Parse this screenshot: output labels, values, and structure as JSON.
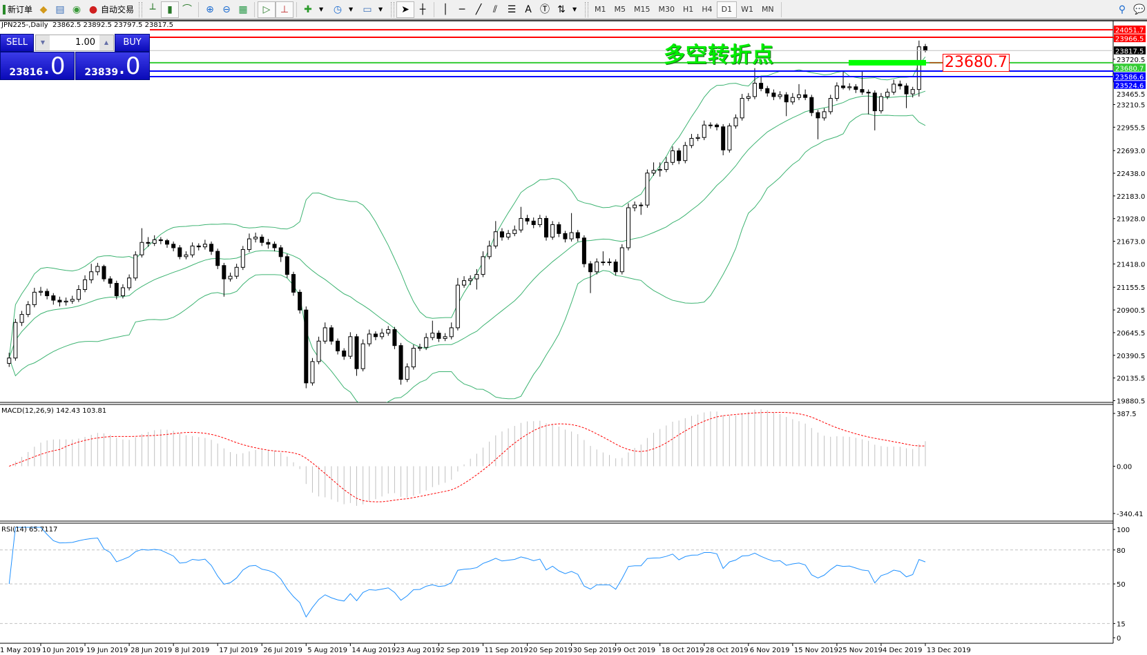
{
  "toolbar": {
    "new_order": "新订单",
    "auto_trading": "自动交易",
    "timeframes": [
      "M1",
      "M5",
      "M15",
      "M30",
      "H1",
      "H4",
      "D1",
      "W1",
      "MN"
    ],
    "active_timeframe": "D1"
  },
  "chart": {
    "title": "JPN225-,Daily  23862.5 23892.5 23797.5 23817.5",
    "annotation": "多空转折点",
    "price_label": "23680.7",
    "annotation_color": "#00ee00"
  },
  "trade_panel": {
    "sell_label": "SELL",
    "buy_label": "BUY",
    "lots": "1.00",
    "sell_price_main": "23816",
    "sell_price_big": ".0",
    "buy_price_main": "23839",
    "buy_price_big": ".0"
  },
  "macd": {
    "label": "MACD(12,26,9) 142.43 103.81",
    "axis": [
      "387.5",
      "0.00",
      "-340.41"
    ]
  },
  "rsi": {
    "label": "RSI(14) 65.7117",
    "axis": [
      "100",
      "80",
      "50",
      "15",
      "0"
    ]
  },
  "chart_data": {
    "type": "candlestick",
    "symbol": "JPN225-",
    "timeframe": "Daily",
    "y_ticks": [
      "23465.5",
      "23210.5",
      "22955.5",
      "22693.0",
      "22438.0",
      "22183.0",
      "21928.0",
      "21673.0",
      "21418.0",
      "21155.5",
      "20900.5",
      "20645.5",
      "20390.5",
      "20135.5",
      "19880.5",
      "23720.5"
    ],
    "ylim": [
      19880.5,
      24090
    ],
    "hlines": [
      {
        "value": 24051.7,
        "label": "24051.7",
        "color": "#ff0000"
      },
      {
        "value": 23966.5,
        "label": "23966.5",
        "color": "#ff0000"
      },
      {
        "value": 23817.5,
        "label": "23817.5",
        "color": "#000000"
      },
      {
        "value": 23680.7,
        "label": "23680.7",
        "color": "#33cc33"
      },
      {
        "value": 23586.6,
        "label": "23586.6",
        "color": "#0000ff"
      },
      {
        "value": 23524.6,
        "label": "23524.6",
        "color": "#0000ff"
      }
    ],
    "x_labels": [
      "1 May 2019",
      "10 Jun 2019",
      "19 Jun 2019",
      "28 Jun 2019",
      "8 Jul 2019",
      "17 Jul 2019",
      "26 Jul 2019",
      "5 Aug 2019",
      "14 Aug 2019",
      "23 Aug 2019",
      "2 Sep 2019",
      "11 Sep 2019",
      "20 Sep 2019",
      "30 Sep 2019",
      "9 Oct 2019",
      "18 Oct 2019",
      "28 Oct 2019",
      "6 Nov 2019",
      "15 Nov 2019",
      "25 Nov 2019",
      "4 Dec 2019",
      "13 Dec 2019"
    ],
    "indicators": {
      "bollinger": {
        "period": 20,
        "deviation": 2,
        "color": "#3cb371"
      },
      "macd_hist_color": "#c0c0c0",
      "macd_signal_color": "#ff0000",
      "rsi_color": "#1e90ff"
    },
    "ohlc": [
      [
        20300,
        20420,
        20260,
        20360
      ],
      [
        20360,
        20800,
        20330,
        20760
      ],
      [
        20760,
        20890,
        20720,
        20850
      ],
      [
        20850,
        21000,
        20820,
        20960
      ],
      [
        20960,
        21150,
        20930,
        21100
      ],
      [
        21100,
        21160,
        21060,
        21110
      ],
      [
        21110,
        21140,
        21020,
        21060
      ],
      [
        21060,
        21090,
        20960,
        21010
      ],
      [
        21010,
        21050,
        20940,
        20990
      ],
      [
        20990,
        21040,
        20950,
        21000
      ],
      [
        21000,
        21060,
        20970,
        21020
      ],
      [
        21020,
        21180,
        20990,
        21130
      ],
      [
        21130,
        21290,
        21100,
        21240
      ],
      [
        21240,
        21420,
        21200,
        21330
      ],
      [
        21330,
        21430,
        21290,
        21390
      ],
      [
        21390,
        21410,
        21220,
        21250
      ],
      [
        21250,
        21280,
        21150,
        21200
      ],
      [
        21200,
        21230,
        21020,
        21060
      ],
      [
        21060,
        21190,
        21030,
        21150
      ],
      [
        21150,
        21300,
        21120,
        21260
      ],
      [
        21260,
        21560,
        21230,
        21520
      ],
      [
        21520,
        21820,
        21490,
        21660
      ],
      [
        21660,
        21720,
        21610,
        21650
      ],
      [
        21650,
        21740,
        21620,
        21690
      ],
      [
        21690,
        21720,
        21640,
        21680
      ],
      [
        21680,
        21700,
        21600,
        21640
      ],
      [
        21640,
        21670,
        21560,
        21600
      ],
      [
        21600,
        21630,
        21470,
        21500
      ],
      [
        21500,
        21560,
        21470,
        21520
      ],
      [
        21520,
        21660,
        21490,
        21620
      ],
      [
        21620,
        21650,
        21570,
        21610
      ],
      [
        21610,
        21690,
        21580,
        21640
      ],
      [
        21640,
        21670,
        21520,
        21560
      ],
      [
        21560,
        21590,
        21360,
        21400
      ],
      [
        21400,
        21430,
        21050,
        21250
      ],
      [
        21250,
        21320,
        21220,
        21280
      ],
      [
        21280,
        21420,
        21250,
        21380
      ],
      [
        21380,
        21620,
        21350,
        21580
      ],
      [
        21580,
        21760,
        21550,
        21700
      ],
      [
        21700,
        21770,
        21660,
        21720
      ],
      [
        21720,
        21750,
        21620,
        21660
      ],
      [
        21660,
        21700,
        21590,
        21640
      ],
      [
        21640,
        21670,
        21560,
        21600
      ],
      [
        21600,
        21630,
        21440,
        21500
      ],
      [
        21500,
        21530,
        21260,
        21300
      ],
      [
        21300,
        21330,
        21060,
        21100
      ],
      [
        21100,
        21130,
        20860,
        20900
      ],
      [
        20900,
        20940,
        20020,
        20080
      ],
      [
        20080,
        20360,
        20050,
        20320
      ],
      [
        20320,
        20600,
        20290,
        20550
      ],
      [
        20550,
        20760,
        20520,
        20700
      ],
      [
        20700,
        20730,
        20510,
        20550
      ],
      [
        20550,
        20580,
        20400,
        20440
      ],
      [
        20440,
        20470,
        20340,
        20380
      ],
      [
        20380,
        20650,
        20350,
        20600
      ],
      [
        20600,
        20630,
        20160,
        20240
      ],
      [
        20240,
        20570,
        20210,
        20520
      ],
      [
        20520,
        20680,
        20490,
        20630
      ],
      [
        20630,
        20660,
        20560,
        20600
      ],
      [
        20600,
        20690,
        20570,
        20640
      ],
      [
        20640,
        20720,
        20610,
        20680
      ],
      [
        20680,
        20710,
        20460,
        20500
      ],
      [
        20500,
        20530,
        20060,
        20120
      ],
      [
        20120,
        20300,
        20090,
        20260
      ],
      [
        20260,
        20510,
        20230,
        20470
      ],
      [
        20470,
        20520,
        20440,
        20480
      ],
      [
        20480,
        20640,
        20450,
        20590
      ],
      [
        20590,
        20780,
        20560,
        20640
      ],
      [
        20640,
        20670,
        20540,
        20580
      ],
      [
        20580,
        20640,
        20550,
        20600
      ],
      [
        20600,
        20760,
        20570,
        20700
      ],
      [
        20700,
        21260,
        20670,
        21180
      ],
      [
        21180,
        21280,
        21150,
        21230
      ],
      [
        21230,
        21290,
        21180,
        21250
      ],
      [
        21250,
        21360,
        21130,
        21300
      ],
      [
        21300,
        21560,
        21270,
        21500
      ],
      [
        21500,
        21680,
        21470,
        21620
      ],
      [
        21620,
        21900,
        21590,
        21780
      ],
      [
        21780,
        21820,
        21680,
        21720
      ],
      [
        21720,
        21800,
        21690,
        21760
      ],
      [
        21760,
        21850,
        21730,
        21800
      ],
      [
        21800,
        22060,
        21770,
        21930
      ],
      [
        21930,
        21970,
        21860,
        21900
      ],
      [
        21900,
        21940,
        21820,
        21860
      ],
      [
        21860,
        21970,
        21830,
        21930
      ],
      [
        21930,
        21960,
        21680,
        21720
      ],
      [
        21720,
        21900,
        21690,
        21860
      ],
      [
        21860,
        21890,
        21720,
        21760
      ],
      [
        21760,
        21790,
        21660,
        21700
      ],
      [
        21700,
        21990,
        21670,
        21770
      ],
      [
        21770,
        21800,
        21670,
        21710
      ],
      [
        21710,
        21740,
        21380,
        21420
      ],
      [
        21420,
        21450,
        21090,
        21330
      ],
      [
        21330,
        21480,
        21300,
        21440
      ],
      [
        21440,
        21560,
        21400,
        21440
      ],
      [
        21440,
        21480,
        21400,
        21440
      ],
      [
        21440,
        21470,
        21290,
        21330
      ],
      [
        21330,
        21640,
        21300,
        21600
      ],
      [
        21600,
        22100,
        21570,
        22050
      ],
      [
        22050,
        22120,
        22010,
        22080
      ],
      [
        22080,
        22110,
        21970,
        22080
      ],
      [
        22080,
        22480,
        22050,
        22440
      ],
      [
        22440,
        22560,
        22410,
        22470
      ],
      [
        22470,
        22560,
        22400,
        22480
      ],
      [
        22480,
        22620,
        22450,
        22560
      ],
      [
        22560,
        22740,
        22530,
        22690
      ],
      [
        22690,
        22720,
        22540,
        22580
      ],
      [
        22580,
        22790,
        22550,
        22750
      ],
      [
        22750,
        22880,
        22720,
        22830
      ],
      [
        22830,
        22880,
        22800,
        22840
      ],
      [
        22840,
        23030,
        22810,
        22980
      ],
      [
        22980,
        23010,
        22940,
        22980
      ],
      [
        22980,
        23000,
        22920,
        22960
      ],
      [
        22960,
        22990,
        22640,
        22700
      ],
      [
        22700,
        23000,
        22670,
        22970
      ],
      [
        22970,
        23100,
        22940,
        23060
      ],
      [
        23060,
        23330,
        23030,
        23280
      ],
      [
        23280,
        23340,
        23250,
        23300
      ],
      [
        23300,
        23620,
        23270,
        23450
      ],
      [
        23450,
        23520,
        23360,
        23390
      ],
      [
        23390,
        23420,
        23300,
        23340
      ],
      [
        23340,
        23380,
        23260,
        23300
      ],
      [
        23300,
        23360,
        23270,
        23320
      ],
      [
        23320,
        23350,
        23080,
        23240
      ],
      [
        23240,
        23340,
        23210,
        23290
      ],
      [
        23290,
        23440,
        23260,
        23320
      ],
      [
        23320,
        23380,
        23260,
        23290
      ],
      [
        23290,
        23320,
        23080,
        23120
      ],
      [
        23120,
        23150,
        22820,
        23060
      ],
      [
        23060,
        23170,
        23030,
        23130
      ],
      [
        23130,
        23320,
        23100,
        23280
      ],
      [
        23280,
        23460,
        23250,
        23420
      ],
      [
        23420,
        23590,
        23380,
        23400
      ],
      [
        23400,
        23450,
        23370,
        23410
      ],
      [
        23410,
        23440,
        23340,
        23380
      ],
      [
        23380,
        23590,
        23320,
        23350
      ],
      [
        23350,
        23380,
        23100,
        23340
      ],
      [
        23340,
        23370,
        22920,
        23140
      ],
      [
        23140,
        23340,
        23110,
        23300
      ],
      [
        23300,
        23390,
        23270,
        23350
      ],
      [
        23350,
        23490,
        23320,
        23440
      ],
      [
        23440,
        23480,
        23380,
        23420
      ],
      [
        23420,
        23450,
        23170,
        23330
      ],
      [
        23330,
        23410,
        23290,
        23380
      ],
      [
        23380,
        23930,
        23300,
        23860
      ],
      [
        23862.5,
        23892.5,
        23797.5,
        23817.5
      ]
    ]
  }
}
